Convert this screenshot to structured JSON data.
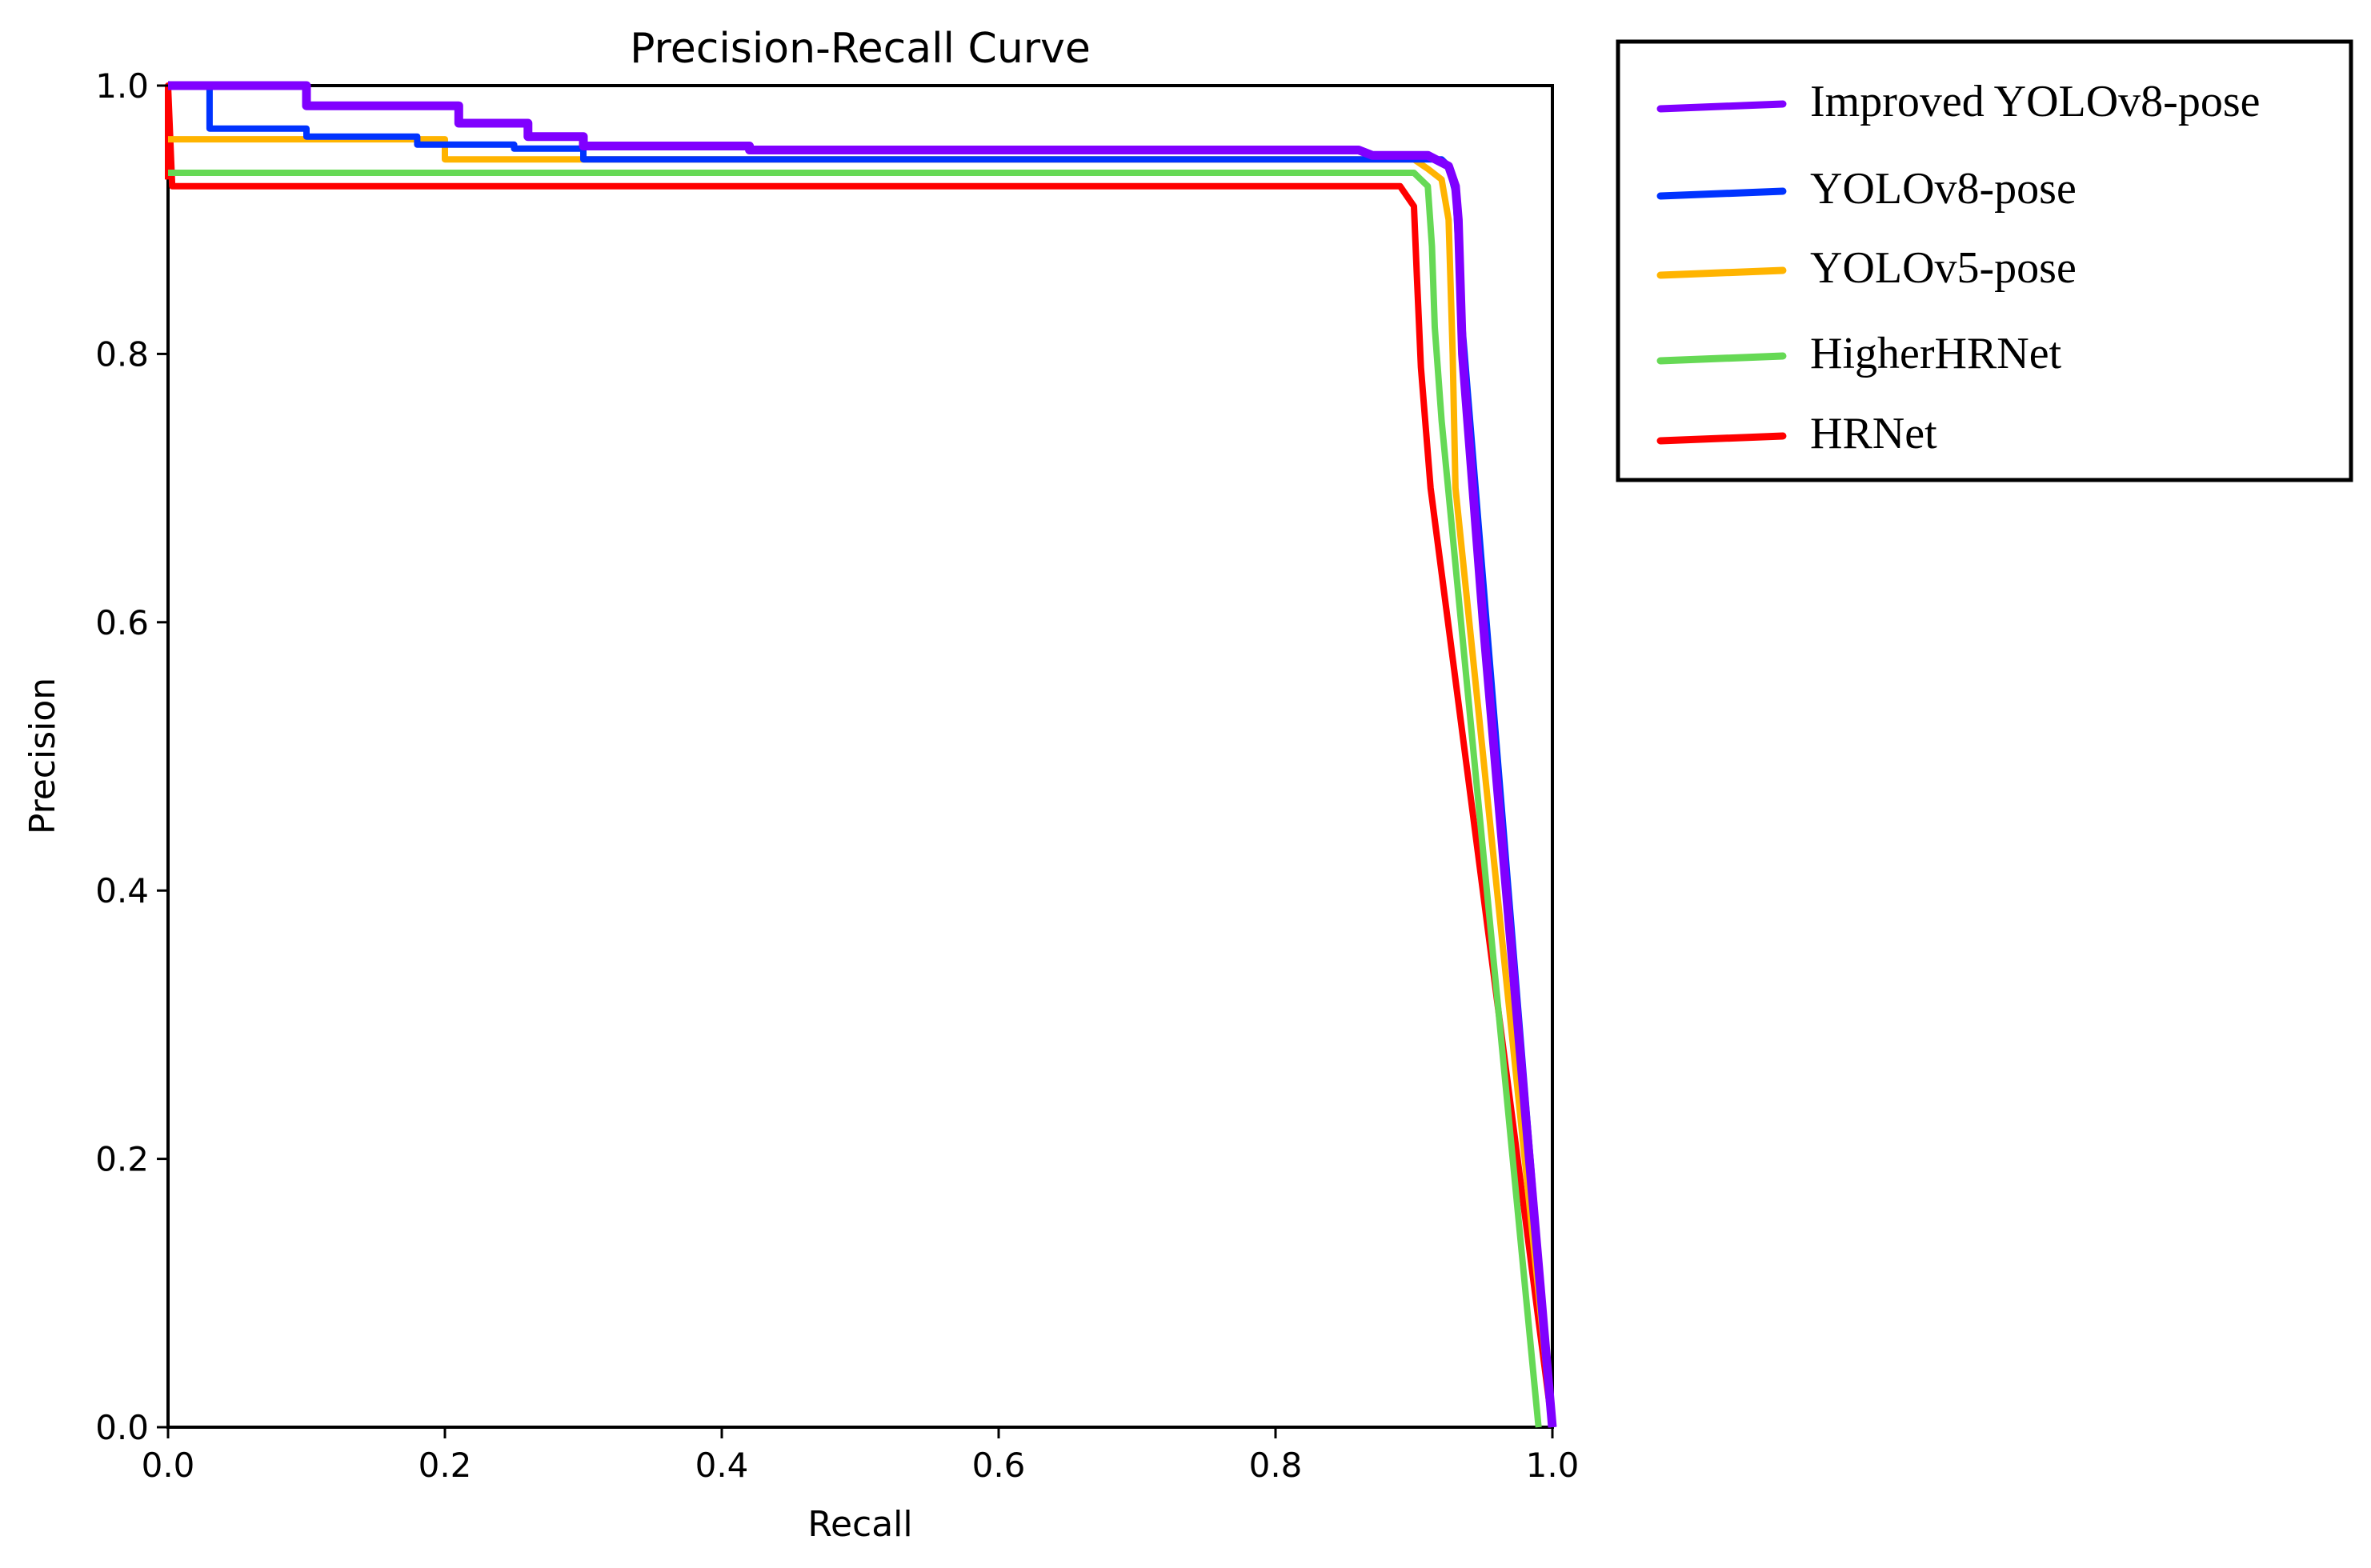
{
  "chart_data": {
    "type": "line",
    "title": "Precision-Recall Curve",
    "xlabel": "Recall",
    "ylabel": "Precision",
    "xlim": [
      0.0,
      1.0
    ],
    "ylim": [
      0.0,
      1.0
    ],
    "xticks": [
      "0.0",
      "0.2",
      "0.4",
      "0.6",
      "0.8",
      "1.0"
    ],
    "yticks": [
      "0.0",
      "0.2",
      "0.4",
      "0.6",
      "0.8",
      "1.0"
    ],
    "grid": false,
    "legend_position": "outside-top-right",
    "series": [
      {
        "name": "Improved YOLOv8-pose",
        "color": "#8000FF",
        "x": [
          0.0,
          0.1,
          0.1,
          0.21,
          0.21,
          0.26,
          0.26,
          0.3,
          0.3,
          0.42,
          0.42,
          0.86,
          0.87,
          0.91,
          0.925,
          0.93,
          0.932,
          0.935,
          0.95,
          1.0
        ],
        "y": [
          1.0,
          1.0,
          0.985,
          0.985,
          0.972,
          0.972,
          0.962,
          0.962,
          0.955,
          0.955,
          0.952,
          0.952,
          0.948,
          0.948,
          0.94,
          0.925,
          0.9,
          0.8,
          0.6,
          0.0
        ]
      },
      {
        "name": "YOLOv8-pose",
        "color": "#0033FF",
        "x": [
          0.0,
          0.03,
          0.03,
          0.1,
          0.1,
          0.18,
          0.18,
          0.25,
          0.25,
          0.3,
          0.3,
          0.92,
          0.925,
          0.93,
          0.932,
          0.935,
          1.0
        ],
        "y": [
          1.0,
          1.0,
          0.968,
          0.968,
          0.962,
          0.962,
          0.956,
          0.956,
          0.953,
          0.953,
          0.945,
          0.945,
          0.94,
          0.92,
          0.88,
          0.82,
          0.0
        ]
      },
      {
        "name": "YOLOv5-pose",
        "color": "#FFB400",
        "x": [
          0.0,
          0.2,
          0.2,
          0.9,
          0.91,
          0.92,
          0.925,
          0.928,
          0.93,
          1.0
        ],
        "y": [
          0.96,
          0.96,
          0.945,
          0.945,
          0.938,
          0.93,
          0.9,
          0.8,
          0.7,
          0.0
        ]
      },
      {
        "name": "HigherHRNet",
        "color": "#66D955",
        "x": [
          0.0,
          0.9,
          0.91,
          0.913,
          0.915,
          0.92,
          0.99
        ],
        "y": [
          0.935,
          0.935,
          0.925,
          0.88,
          0.82,
          0.75,
          0.0
        ]
      },
      {
        "name": "HRNet",
        "color": "#FF0000",
        "x": [
          0.0,
          0.0,
          0.003,
          0.003,
          0.89,
          0.9,
          0.902,
          0.905,
          0.912,
          1.0
        ],
        "y": [
          0.93,
          1.0,
          0.925,
          0.925,
          0.925,
          0.91,
          0.86,
          0.79,
          0.7,
          0.0
        ]
      }
    ]
  }
}
